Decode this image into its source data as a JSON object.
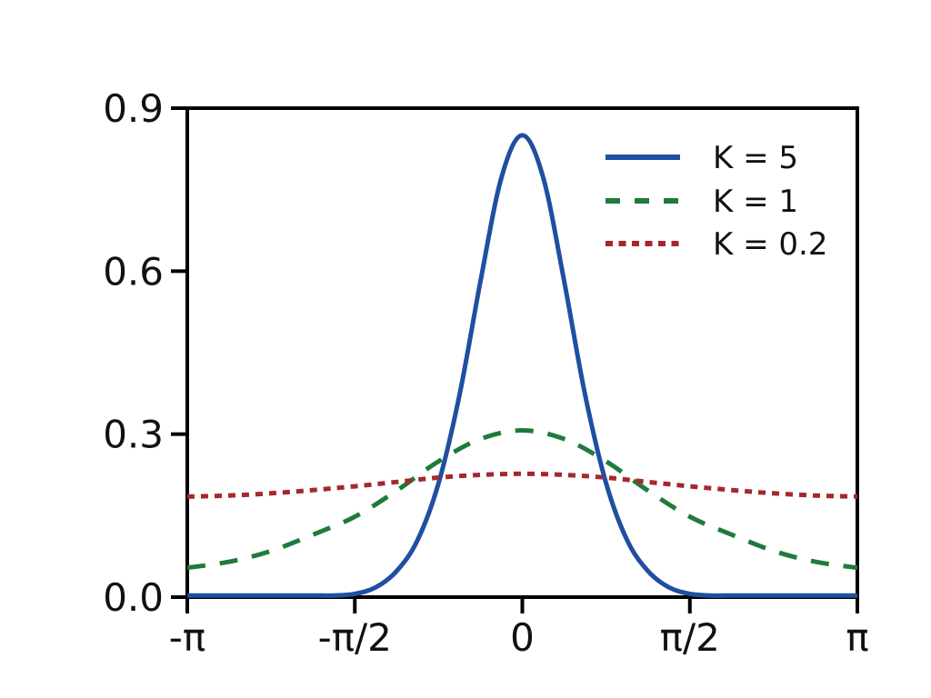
{
  "figure": {
    "background_color": "#ffffff",
    "axis_color": "#000000"
  },
  "chart_data": {
    "type": "line",
    "title": "",
    "xlabel": "",
    "ylabel": "",
    "x_unit": "angle in multiples of pi (radians), from -pi to pi",
    "xlim": [
      -1,
      1
    ],
    "ylim": [
      0,
      0.9
    ],
    "grid": false,
    "frame": "full-box",
    "legend": {
      "position": "upper-right",
      "frame": false
    },
    "xticks": [
      {
        "pos": -1,
        "label": "-π"
      },
      {
        "pos": -0.5,
        "label": "-π/2"
      },
      {
        "pos": 0,
        "label": "0"
      },
      {
        "pos": 0.5,
        "label": "π/2"
      },
      {
        "pos": 1,
        "label": "π"
      }
    ],
    "yticks": [
      {
        "pos": 0.0,
        "label": "0.0"
      },
      {
        "pos": 0.3,
        "label": "0.3"
      },
      {
        "pos": 0.6,
        "label": "0.6"
      },
      {
        "pos": 0.9,
        "label": "0.9"
      }
    ],
    "series": [
      {
        "name": "K = 5",
        "color": "#1F4FA0",
        "style": "solid",
        "x": [
          -1,
          -0.9375,
          -0.875,
          -0.8125,
          -0.75,
          -0.6875,
          -0.625,
          -0.5625,
          -0.5,
          -0.4375,
          -0.375,
          -0.3125,
          -0.25,
          -0.1875,
          -0.125,
          -0.0625,
          0,
          0.0625,
          0.125,
          0.1875,
          0.25,
          0.3125,
          0.375,
          0.4375,
          0.5,
          0.5625,
          0.625,
          0.6875,
          0.75,
          0.8125,
          0.875,
          0.9375,
          1
        ],
        "y": [
          0.003,
          0.003,
          0.003,
          0.003,
          0.003,
          0.003,
          0.003,
          0.003,
          0.006,
          0.018,
          0.048,
          0.105,
          0.21,
          0.372,
          0.581,
          0.772,
          0.85,
          0.772,
          0.581,
          0.372,
          0.21,
          0.105,
          0.048,
          0.018,
          0.006,
          0.003,
          0.003,
          0.003,
          0.003,
          0.003,
          0.003,
          0.003,
          0.003
        ]
      },
      {
        "name": "K = 1",
        "color": "#1E7B3C",
        "style": "dashed",
        "x": [
          -1,
          -0.875,
          -0.75,
          -0.625,
          -0.5,
          -0.375,
          -0.25,
          -0.125,
          0,
          0.125,
          0.25,
          0.375,
          0.5,
          0.625,
          0.75,
          0.875,
          1
        ],
        "y": [
          0.054,
          0.065,
          0.085,
          0.115,
          0.148,
          0.196,
          0.25,
          0.291,
          0.307,
          0.291,
          0.25,
          0.196,
          0.148,
          0.115,
          0.085,
          0.065,
          0.054
        ]
      },
      {
        "name": "K = 0.2",
        "color": "#A5282C",
        "style": "dotted",
        "x": [
          -1,
          -0.875,
          -0.75,
          -0.625,
          -0.5,
          -0.375,
          -0.25,
          -0.125,
          0,
          0.125,
          0.25,
          0.375,
          0.5,
          0.625,
          0.75,
          0.875,
          1
        ],
        "y": [
          0.185,
          0.187,
          0.191,
          0.197,
          0.204,
          0.212,
          0.22,
          0.225,
          0.227,
          0.225,
          0.22,
          0.212,
          0.204,
          0.197,
          0.191,
          0.187,
          0.185
        ]
      }
    ]
  }
}
